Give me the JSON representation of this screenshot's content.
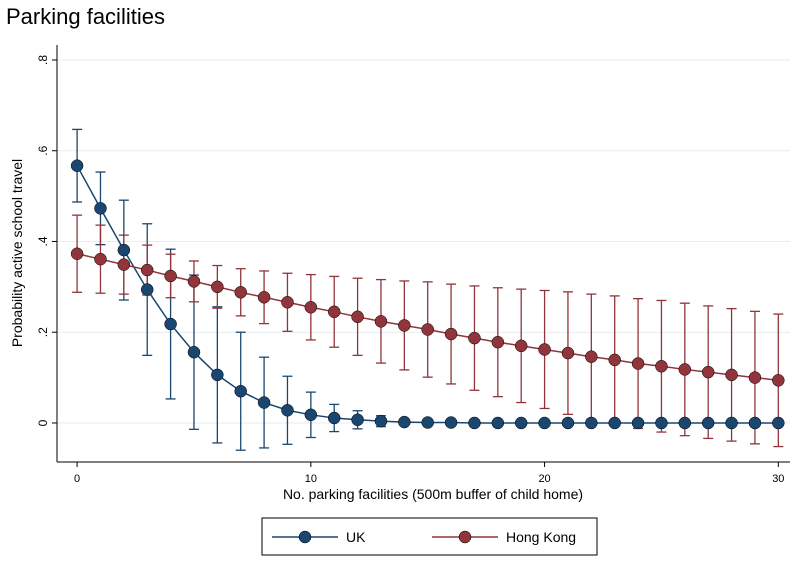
{
  "chart_data": {
    "type": "line",
    "title": "Parking facilities",
    "x_label": "No. parking facilities (500m buffer of child home)",
    "y_label": "Probability active school travel",
    "x": [
      0,
      1,
      2,
      3,
      4,
      5,
      6,
      7,
      8,
      9,
      10,
      11,
      12,
      13,
      14,
      15,
      16,
      17,
      18,
      19,
      20,
      21,
      22,
      23,
      24,
      25,
      26,
      27,
      28,
      29,
      30
    ],
    "series": [
      {
        "name": "UK",
        "color": "#1a476f",
        "values": [
          0.567,
          0.473,
          0.381,
          0.294,
          0.218,
          0.156,
          0.106,
          0.07,
          0.045,
          0.028,
          0.018,
          0.011,
          0.007,
          0.004,
          0.002,
          0.001,
          0.001,
          0,
          0,
          0,
          0,
          0,
          0,
          0,
          0,
          0,
          0,
          0,
          0,
          0,
          0
        ],
        "errors": [
          0.08,
          0.08,
          0.11,
          0.145,
          0.165,
          0.17,
          0.15,
          0.13,
          0.1,
          0.075,
          0.05,
          0.03,
          0.02,
          0.012,
          0.006,
          0.003,
          0.002,
          0.001,
          0,
          0,
          0,
          0,
          0,
          0,
          0,
          0,
          0,
          0,
          0,
          0,
          0
        ]
      },
      {
        "name": "Hong Kong",
        "color": "#90353b",
        "values": [
          0.373,
          0.361,
          0.349,
          0.337,
          0.324,
          0.312,
          0.3,
          0.288,
          0.277,
          0.266,
          0.255,
          0.245,
          0.234,
          0.224,
          0.215,
          0.206,
          0.196,
          0.187,
          0.178,
          0.17,
          0.162,
          0.154,
          0.146,
          0.139,
          0.131,
          0.125,
          0.118,
          0.112,
          0.106,
          0.1,
          0.094
        ],
        "errors": [
          0.085,
          0.075,
          0.065,
          0.055,
          0.048,
          0.045,
          0.047,
          0.052,
          0.058,
          0.064,
          0.072,
          0.078,
          0.085,
          0.092,
          0.098,
          0.105,
          0.11,
          0.115,
          0.12,
          0.125,
          0.13,
          0.135,
          0.138,
          0.141,
          0.143,
          0.145,
          0.146,
          0.146,
          0.146,
          0.146,
          0.146
        ]
      }
    ],
    "xlim": [
      -0.86,
      30.5
    ],
    "xticks": [
      0,
      10,
      20,
      30
    ],
    "ylim": [
      -0.086,
      0.833
    ],
    "yticks": [
      0,
      {
        "value": 0.2,
        "label": ".2"
      },
      {
        "value": 0.4,
        "label": ".4"
      },
      {
        "value": 0.6,
        "label": ".6"
      },
      {
        "value": 0.8,
        "label": ".8"
      }
    ],
    "grid": true,
    "legend": "bottom"
  }
}
